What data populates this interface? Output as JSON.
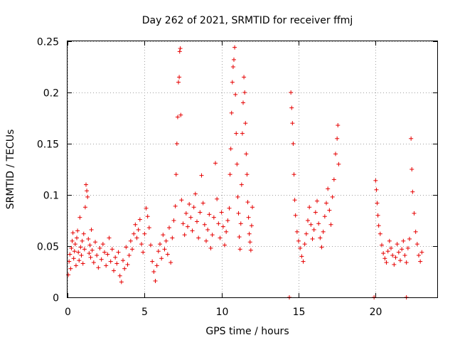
{
  "chart_data": {
    "type": "scatter",
    "title": "Day 262 of 2021, SRMTID for receiver ffmj",
    "xlabel": "GPS time / hours",
    "ylabel": "SRMTID / TECUs",
    "xlim": [
      0,
      24
    ],
    "ylim": [
      0,
      0.25
    ],
    "xticks": [
      0,
      5,
      10,
      15,
      20
    ],
    "xtick_labels": [
      "0",
      "5",
      "10",
      "15",
      "20"
    ],
    "yticks": [
      0,
      0.05,
      0.1,
      0.15,
      0.2,
      0.25
    ],
    "ytick_labels": [
      "0",
      "0.05",
      "0.1",
      "0.15",
      "0.2",
      "0.25"
    ],
    "grid": true,
    "marker": "plus",
    "color": "#e60000",
    "series": [
      {
        "name": "SRMTID",
        "points": [
          [
            0.05,
            0.022
          ],
          [
            0.1,
            0.035
          ],
          [
            0.15,
            0.042
          ],
          [
            0.2,
            0.028
          ],
          [
            0.25,
            0.048
          ],
          [
            0.3,
            0.055
          ],
          [
            0.35,
            0.063
          ],
          [
            0.4,
            0.038
          ],
          [
            0.45,
            0.045
          ],
          [
            0.5,
            0.052
          ],
          [
            0.55,
            0.031
          ],
          [
            0.6,
            0.058
          ],
          [
            0.65,
            0.065
          ],
          [
            0.7,
            0.044
          ],
          [
            0.75,
            0.036
          ],
          [
            0.8,
            0.078
          ],
          [
            0.85,
            0.049
          ],
          [
            0.9,
            0.041
          ],
          [
            0.95,
            0.055
          ],
          [
            1.0,
            0.033
          ],
          [
            1.05,
            0.062
          ],
          [
            1.1,
            0.047
          ],
          [
            1.15,
            0.088
          ],
          [
            1.2,
            0.11
          ],
          [
            1.25,
            0.104
          ],
          [
            1.3,
            0.098
          ],
          [
            1.35,
            0.057
          ],
          [
            1.4,
            0.043
          ],
          [
            1.45,
            0.051
          ],
          [
            1.5,
            0.039
          ],
          [
            1.55,
            0.066
          ],
          [
            1.6,
            0.046
          ],
          [
            1.7,
            0.034
          ],
          [
            1.8,
            0.054
          ],
          [
            1.9,
            0.041
          ],
          [
            2.0,
            0.029
          ],
          [
            2.1,
            0.048
          ],
          [
            2.2,
            0.037
          ],
          [
            2.3,
            0.052
          ],
          [
            2.4,
            0.044
          ],
          [
            2.5,
            0.031
          ],
          [
            2.6,
            0.042
          ],
          [
            2.7,
            0.058
          ],
          [
            2.8,
            0.035
          ],
          [
            2.9,
            0.047
          ],
          [
            3.0,
            0.026
          ],
          [
            3.1,
            0.039
          ],
          [
            3.2,
            0.033
          ],
          [
            3.3,
            0.044
          ],
          [
            3.4,
            0.021
          ],
          [
            3.5,
            0.015
          ],
          [
            3.6,
            0.036
          ],
          [
            3.7,
            0.028
          ],
          [
            3.8,
            0.049
          ],
          [
            3.9,
            0.032
          ],
          [
            4.0,
            0.041
          ],
          [
            4.1,
            0.055
          ],
          [
            4.2,
            0.047
          ],
          [
            4.3,
            0.062
          ],
          [
            4.4,
            0.071
          ],
          [
            4.5,
            0.058
          ],
          [
            4.6,
            0.066
          ],
          [
            4.7,
            0.076
          ],
          [
            4.8,
            0.052
          ],
          [
            4.9,
            0.044
          ],
          [
            5.0,
            0.062
          ],
          [
            5.1,
            0.087
          ],
          [
            5.2,
            0.079
          ],
          [
            5.3,
            0.068
          ],
          [
            5.4,
            0.051
          ],
          [
            5.5,
            0.035
          ],
          [
            5.6,
            0.025
          ],
          [
            5.7,
            0.016
          ],
          [
            5.8,
            0.031
          ],
          [
            5.9,
            0.045
          ],
          [
            6.0,
            0.052
          ],
          [
            6.1,
            0.038
          ],
          [
            6.2,
            0.061
          ],
          [
            6.3,
            0.047
          ],
          [
            6.4,
            0.055
          ],
          [
            6.5,
            0.042
          ],
          [
            6.6,
            0.068
          ],
          [
            6.7,
            0.034
          ],
          [
            6.8,
            0.058
          ],
          [
            6.9,
            0.075
          ],
          [
            7.0,
            0.089
          ],
          [
            7.05,
            0.12
          ],
          [
            7.1,
            0.15
          ],
          [
            7.15,
            0.176
          ],
          [
            7.2,
            0.21
          ],
          [
            7.25,
            0.215
          ],
          [
            7.28,
            0.24
          ],
          [
            7.32,
            0.243
          ],
          [
            7.35,
            0.178
          ],
          [
            7.4,
            0.095
          ],
          [
            7.5,
            0.072
          ],
          [
            7.6,
            0.061
          ],
          [
            7.7,
            0.082
          ],
          [
            7.8,
            0.069
          ],
          [
            7.9,
            0.091
          ],
          [
            8.0,
            0.078
          ],
          [
            8.1,
            0.065
          ],
          [
            8.2,
            0.088
          ],
          [
            8.3,
            0.101
          ],
          [
            8.4,
            0.074
          ],
          [
            8.5,
            0.058
          ],
          [
            8.6,
            0.083
          ],
          [
            8.7,
            0.119
          ],
          [
            8.8,
            0.092
          ],
          [
            8.9,
            0.071
          ],
          [
            9.0,
            0.055
          ],
          [
            9.1,
            0.066
          ],
          [
            9.2,
            0.081
          ],
          [
            9.3,
            0.048
          ],
          [
            9.4,
            0.061
          ],
          [
            9.5,
            0.078
          ],
          [
            9.6,
            0.131
          ],
          [
            9.7,
            0.096
          ],
          [
            9.8,
            0.072
          ],
          [
            9.9,
            0.058
          ],
          [
            10.0,
            0.083
          ],
          [
            10.1,
            0.069
          ],
          [
            10.2,
            0.051
          ],
          [
            10.3,
            0.064
          ],
          [
            10.4,
            0.075
          ],
          [
            10.5,
            0.087
          ],
          [
            10.55,
            0.12
          ],
          [
            10.6,
            0.145
          ],
          [
            10.65,
            0.18
          ],
          [
            10.7,
            0.21
          ],
          [
            10.75,
            0.225
          ],
          [
            10.8,
            0.232
          ],
          [
            10.85,
            0.244
          ],
          [
            10.9,
            0.198
          ],
          [
            10.95,
            0.16
          ],
          [
            11.0,
            0.13
          ],
          [
            11.05,
            0.098
          ],
          [
            11.1,
            0.082
          ],
          [
            11.15,
            0.059
          ],
          [
            11.2,
            0.047
          ],
          [
            11.25,
            0.072
          ],
          [
            11.3,
            0.11
          ],
          [
            11.35,
            0.16
          ],
          [
            11.4,
            0.19
          ],
          [
            11.45,
            0.215
          ],
          [
            11.5,
            0.2
          ],
          [
            11.55,
            0.17
          ],
          [
            11.6,
            0.14
          ],
          [
            11.65,
            0.12
          ],
          [
            11.7,
            0.093
          ],
          [
            11.75,
            0.078
          ],
          [
            11.8,
            0.062
          ],
          [
            11.85,
            0.054
          ],
          [
            11.9,
            0.046
          ],
          [
            11.95,
            0.07
          ],
          [
            12.0,
            0.088
          ],
          [
            14.5,
            0.2
          ],
          [
            14.55,
            0.185
          ],
          [
            14.6,
            0.17
          ],
          [
            14.65,
            0.15
          ],
          [
            14.7,
            0.12
          ],
          [
            14.75,
            0.095
          ],
          [
            14.8,
            0.08
          ],
          [
            14.9,
            0.064
          ],
          [
            15.0,
            0.055
          ],
          [
            15.1,
            0.048
          ],
          [
            15.2,
            0.04
          ],
          [
            15.3,
            0.035
          ],
          [
            15.4,
            0.052
          ],
          [
            15.5,
            0.062
          ],
          [
            15.6,
            0.075
          ],
          [
            15.7,
            0.088
          ],
          [
            15.8,
            0.071
          ],
          [
            15.9,
            0.057
          ],
          [
            16.0,
            0.066
          ],
          [
            16.1,
            0.083
          ],
          [
            16.2,
            0.094
          ],
          [
            16.3,
            0.072
          ],
          [
            16.4,
            0.058
          ],
          [
            16.5,
            0.049
          ],
          [
            16.6,
            0.064
          ],
          [
            16.7,
            0.079
          ],
          [
            16.8,
            0.092
          ],
          [
            16.9,
            0.106
          ],
          [
            17.0,
            0.085
          ],
          [
            17.1,
            0.071
          ],
          [
            17.2,
            0.098
          ],
          [
            17.3,
            0.115
          ],
          [
            17.4,
            0.14
          ],
          [
            17.5,
            0.155
          ],
          [
            17.55,
            0.168
          ],
          [
            17.6,
            0.13
          ],
          [
            20.0,
            0.114
          ],
          [
            20.05,
            0.105
          ],
          [
            20.1,
            0.092
          ],
          [
            20.15,
            0.08
          ],
          [
            20.2,
            0.07
          ],
          [
            20.3,
            0.062
          ],
          [
            20.4,
            0.051
          ],
          [
            20.5,
            0.043
          ],
          [
            20.6,
            0.038
          ],
          [
            20.7,
            0.034
          ],
          [
            20.8,
            0.045
          ],
          [
            20.9,
            0.055
          ],
          [
            21.0,
            0.048
          ],
          [
            21.1,
            0.041
          ],
          [
            21.2,
            0.032
          ],
          [
            21.3,
            0.039
          ],
          [
            21.4,
            0.052
          ],
          [
            21.5,
            0.044
          ],
          [
            21.6,
            0.036
          ],
          [
            21.7,
            0.047
          ],
          [
            21.8,
            0.055
          ],
          [
            21.9,
            0.041
          ],
          [
            22.0,
            0.034
          ],
          [
            22.1,
            0.048
          ],
          [
            22.2,
            0.057
          ],
          [
            22.3,
            0.155
          ],
          [
            22.35,
            0.125
          ],
          [
            22.4,
            0.103
          ],
          [
            22.5,
            0.082
          ],
          [
            22.6,
            0.064
          ],
          [
            22.7,
            0.052
          ],
          [
            22.8,
            0.041
          ],
          [
            22.9,
            0.035
          ],
          [
            23.0,
            0.044
          ],
          [
            14.4,
            0.0
          ],
          [
            19.9,
            0.0
          ],
          [
            22.0,
            0.0
          ]
        ]
      }
    ]
  }
}
